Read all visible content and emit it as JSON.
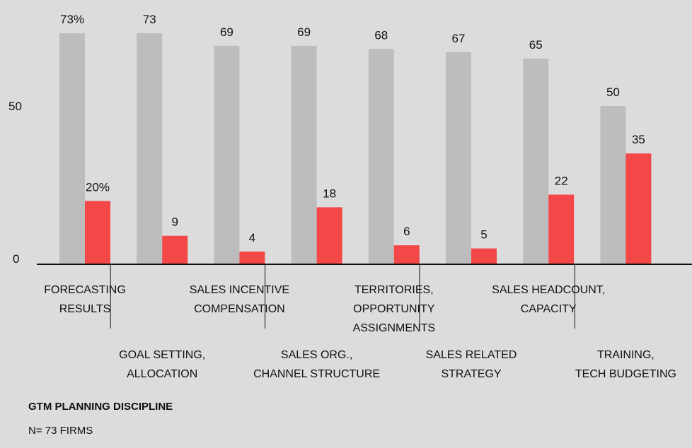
{
  "footer": {
    "title": "GTM PLANNING DISCIPLINE",
    "note": "N= 73  FIRMS"
  },
  "colors": {
    "background": "#dcdcdc",
    "series_a": "#bdbdbd",
    "series_b": "#f44747",
    "axis": "#111111"
  },
  "chart_data": {
    "type": "bar",
    "grouped": true,
    "categories": [
      [
        "FORECASTING",
        "RESULTS"
      ],
      [
        "GOAL SETTING,",
        "ALLOCATION"
      ],
      [
        "SALES INCENTIVE",
        "COMPENSATION"
      ],
      [
        "SALES ORG.,",
        "CHANNEL STRUCTURE"
      ],
      [
        "TERRITORIES,",
        "OPPORTUNITY",
        "ASSIGNMENTS"
      ],
      [
        "SALES RELATED",
        "STRATEGY"
      ],
      [
        "SALES HEADCOUNT,",
        "CAPACITY"
      ],
      [
        "TRAINING,",
        "TECH BUDGETING"
      ]
    ],
    "series": [
      {
        "values": [
          73,
          73,
          69,
          69,
          68,
          67,
          65,
          50
        ],
        "labels": [
          "73%",
          "73",
          "69",
          "69",
          "68",
          "67",
          "65",
          "50"
        ],
        "color": "#bdbdbd"
      },
      {
        "values": [
          20,
          9,
          4,
          18,
          6,
          5,
          22,
          35
        ],
        "labels": [
          "20%",
          "9",
          "4",
          "18",
          "6",
          "5",
          "22",
          "35"
        ],
        "color": "#f44747"
      }
    ],
    "yticks": [
      0,
      50
    ],
    "ylim": [
      0,
      73
    ],
    "grid": false,
    "legend": "none"
  }
}
